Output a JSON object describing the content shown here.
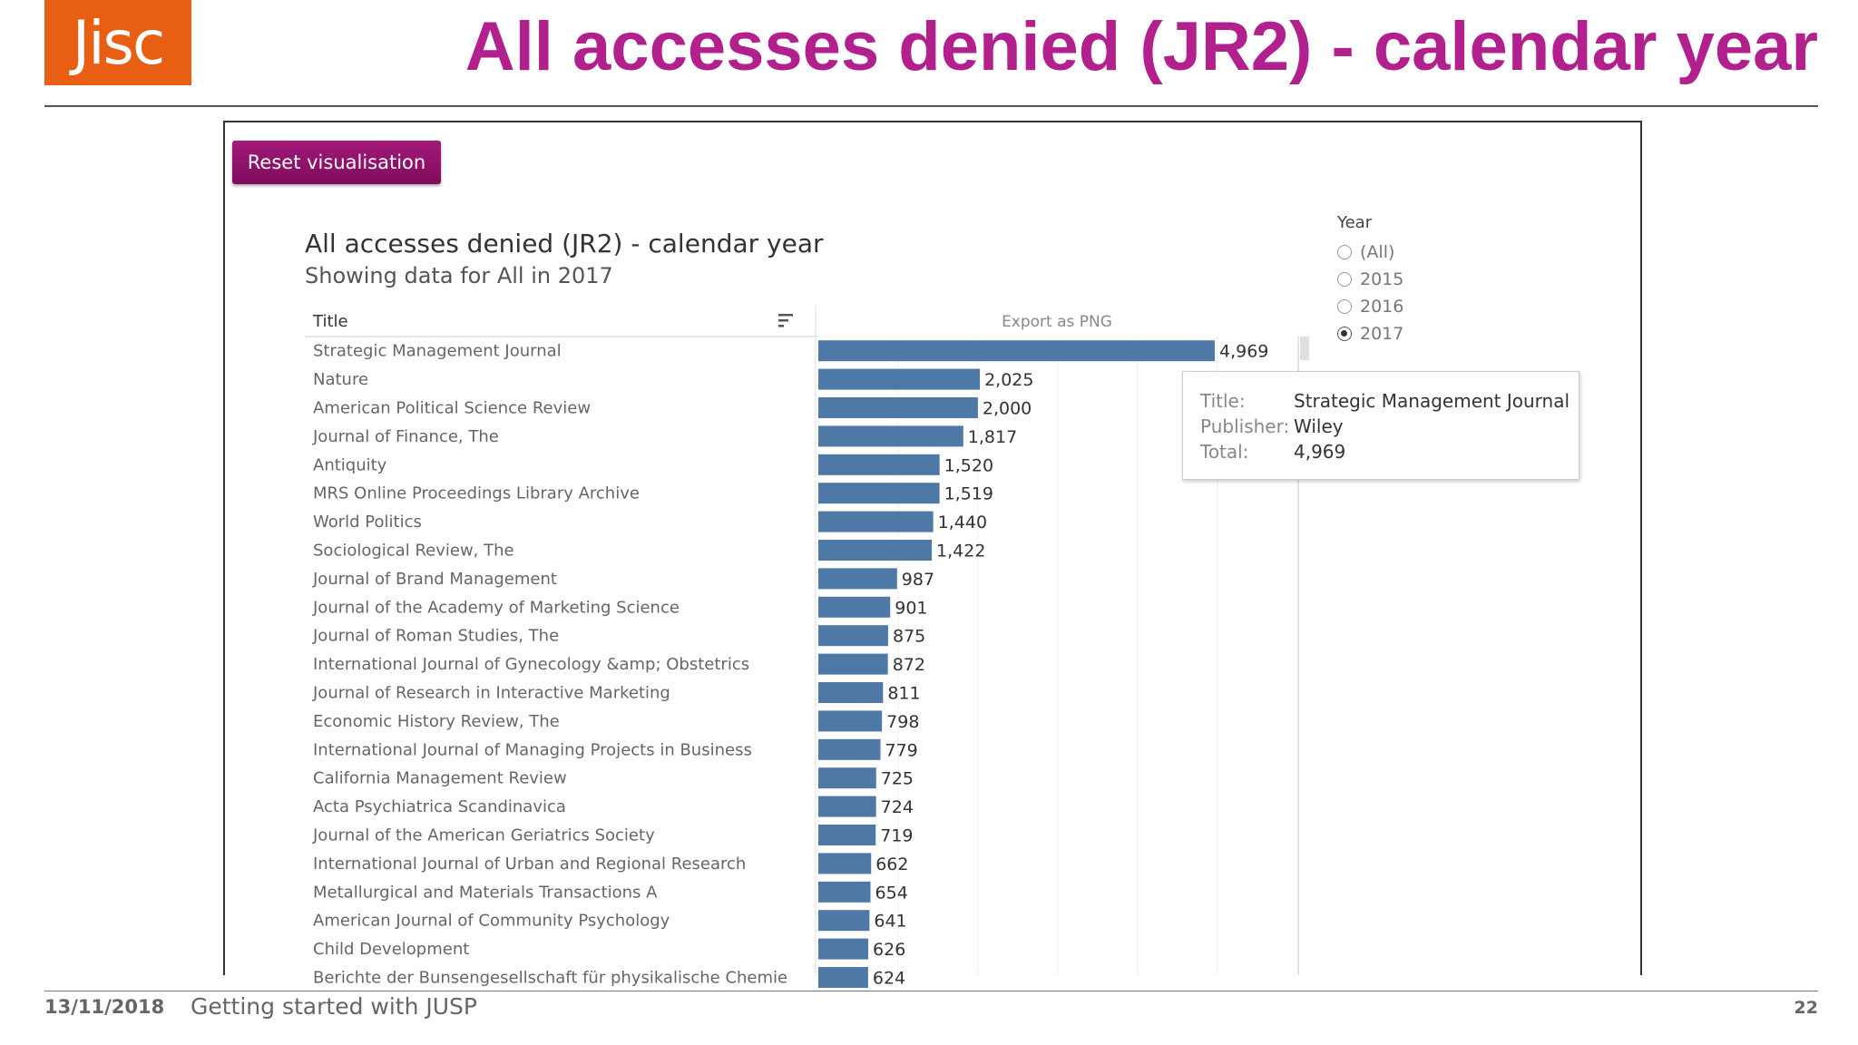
{
  "slide": {
    "logo_text": "Jisc",
    "title": "All accesses denied (JR2) - calendar year",
    "footer_date": "13/11/2018",
    "footer_text": "Getting started with JUSP",
    "page_number": "22",
    "accent_color": "#b2208e",
    "logo_color": "#e85e13"
  },
  "dashboard": {
    "reset_label": "Reset visualisation",
    "title": "All accesses denied (JR2) - calendar year",
    "subtitle": "Showing data for All in 2017",
    "column_header": "Title",
    "export_label": "Export as PNG",
    "sort_icon": "sort-icon",
    "year_filter": {
      "title": "Year",
      "options": [
        "(All)",
        "2015",
        "2016",
        "2017"
      ],
      "selected": "2017"
    },
    "tooltip": {
      "title_label": "Title:",
      "title_value": "Strategic Management Journal",
      "publisher_label": "Publisher:",
      "publisher_value": "Wiley",
      "total_label": "Total:",
      "total_value": "4,969"
    }
  },
  "chart_data": {
    "type": "bar",
    "orientation": "horizontal",
    "bar_color": "#4e79a7",
    "xlim": [
      0,
      6000
    ],
    "categories": [
      "Strategic Management Journal",
      "Nature",
      "American Political Science Review",
      "Journal of Finance, The",
      "Antiquity",
      "MRS Online Proceedings Library Archive",
      "World Politics",
      "Sociological Review, The",
      "Journal of Brand Management",
      "Journal of the Academy of Marketing Science",
      "Journal of Roman Studies, The",
      "International Journal of Gynecology &amp; Obstetrics",
      "Journal of Research in Interactive Marketing",
      "Economic History Review, The",
      "International Journal of Managing Projects in Business",
      "California Management Review",
      "Acta Psychiatrica Scandinavica",
      "Journal of the American Geriatrics Society",
      "International Journal of Urban and Regional Research",
      "Metallurgical and Materials Transactions A",
      "American Journal of Community Psychology",
      "Child Development",
      "Berichte der Bunsengesellschaft für physikalische Chemie"
    ],
    "values": [
      4969,
      2025,
      2000,
      1817,
      1520,
      1519,
      1440,
      1422,
      987,
      901,
      875,
      872,
      811,
      798,
      779,
      725,
      724,
      719,
      662,
      654,
      641,
      626,
      624
    ],
    "labels": [
      "4,969",
      "2,025",
      "2,000",
      "1,817",
      "1,520",
      "1,519",
      "1,440",
      "1,422",
      "987",
      "901",
      "875",
      "872",
      "811",
      "798",
      "779",
      "725",
      "724",
      "719",
      "662",
      "654",
      "641",
      "626",
      "624"
    ]
  }
}
